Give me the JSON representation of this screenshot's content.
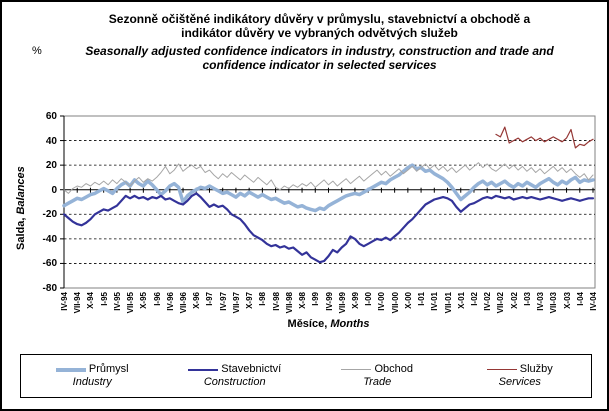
{
  "title": {
    "czech_line1": "Sezonně očištěné indikátory důvěry v průmyslu, stavebnictví a obchodě a",
    "czech_line2": "indikátor důvěry ve vybraných odvětvých služeb",
    "english_line1": "Seasonally adjusted confidence indicators in industry, construction and trade and",
    "english_line2": "confidence indicator in selected services"
  },
  "percent_label": "%",
  "y_axis": {
    "title_czech": "Salda,",
    "title_english": "Balances",
    "max": 60,
    "min": -80,
    "tick_step": 20
  },
  "x_axis": {
    "title_czech": "Měsíce,",
    "title_english": "Months"
  },
  "chart_data": {
    "type": "line",
    "title": "Sezonně očištěné indikátory důvěry v průmyslu, stavebnictví a obchodě a indikátor důvěry ve vybraných odvětvých služeb",
    "subtitle": "Seasonally adjusted confidence indicators in industry, construction and trade and confidence indicator in selected services",
    "xlabel": "Měsíce, Months",
    "ylabel": "Salda, Balances",
    "ylim": [
      -80,
      60
    ],
    "yticks": [
      60,
      40,
      20,
      0,
      -20,
      -40,
      -60,
      -80
    ],
    "grid": "dashed horizontal lines at 40, 20, -20, -40, -60; solid axis at 0",
    "x_unit": "monthly, April 1994 - April 2004, quarterly tick labels",
    "x_tick_labels": [
      "IV-94",
      "VII-94",
      "X-94",
      "I-95",
      "IV-95",
      "VII-95",
      "X-95",
      "I-96",
      "IV-96",
      "VII-96",
      "X-96",
      "I-97",
      "IV-97",
      "VII-97",
      "X-97",
      "I-98",
      "IV-98",
      "VII-98",
      "X-98",
      "I-99",
      "IV-99",
      "VII-99",
      "X-99",
      "I-00",
      "IV-00",
      "VII-00",
      "X-00",
      "I-01",
      "IV-01",
      "VII-01",
      "X-01",
      "I-02",
      "IV-02",
      "VII-02",
      "X-02",
      "I-03",
      "IV-03",
      "VII-03",
      "X-03",
      "I-04",
      "IV-04"
    ],
    "legend_position": "bottom box",
    "series": [
      {
        "id": "industry",
        "name_czech": "Průmysl",
        "name_english": "Industry",
        "color": "#95B3D7",
        "width": 3.5,
        "values": [
          -13,
          -11,
          -9,
          -7,
          -8,
          -6,
          -4,
          -3,
          -1,
          1,
          -1,
          -3,
          1,
          4,
          6,
          3,
          8,
          5,
          3,
          7,
          4,
          0,
          -4,
          -1,
          3,
          5,
          2,
          -10,
          -5,
          -2,
          0,
          2,
          1,
          3,
          1,
          -1,
          -3,
          -2,
          -4,
          -6,
          -3,
          -5,
          -2,
          -4,
          -6,
          -4,
          -6,
          -8,
          -7,
          -9,
          -11,
          -10,
          -12,
          -14,
          -13,
          -15,
          -16,
          -17,
          -15,
          -16,
          -13,
          -11,
          -9,
          -7,
          -5,
          -4,
          -3,
          -4,
          -2,
          0,
          2,
          4,
          6,
          5,
          8,
          10,
          12,
          15,
          18,
          20,
          17,
          18,
          15,
          16,
          13,
          11,
          9,
          6,
          2,
          -3,
          -8,
          -5,
          -2,
          2,
          5,
          7,
          4,
          6,
          3,
          5,
          7,
          4,
          2,
          5,
          3,
          6,
          4,
          2,
          5,
          7,
          9,
          6,
          4,
          7,
          5,
          8,
          10,
          6,
          8,
          7,
          8
        ]
      },
      {
        "id": "construction",
        "name_czech": "Stavebnictví",
        "name_english": "Construction",
        "color": "#333399",
        "width": 2.2,
        "values": [
          -20,
          -23,
          -26,
          -28,
          -29,
          -27,
          -24,
          -20,
          -18,
          -16,
          -17,
          -15,
          -13,
          -9,
          -5,
          -7,
          -5,
          -7,
          -6,
          -8,
          -6,
          -7,
          -5,
          -8,
          -7,
          -9,
          -11,
          -12,
          -9,
          -5,
          -3,
          -6,
          -10,
          -14,
          -12,
          -14,
          -13,
          -16,
          -20,
          -22,
          -24,
          -28,
          -33,
          -37,
          -39,
          -41,
          -44,
          -46,
          -45,
          -47,
          -46,
          -48,
          -47,
          -50,
          -53,
          -51,
          -55,
          -57,
          -59,
          -58,
          -54,
          -49,
          -51,
          -47,
          -44,
          -38,
          -40,
          -44,
          -46,
          -44,
          -42,
          -40,
          -41,
          -39,
          -41,
          -38,
          -35,
          -31,
          -27,
          -24,
          -20,
          -16,
          -12,
          -10,
          -8,
          -7,
          -6,
          -7,
          -9,
          -14,
          -18,
          -15,
          -12,
          -11,
          -9,
          -7,
          -6,
          -7,
          -5,
          -6,
          -7,
          -6,
          -8,
          -7,
          -6,
          -7,
          -6,
          -7,
          -8,
          -7,
          -6,
          -7,
          -8,
          -9,
          -8,
          -7,
          -8,
          -9,
          -8,
          -7,
          -7
        ]
      },
      {
        "id": "trade",
        "name_czech": "Obchod",
        "name_english": "Trade",
        "color": "#A6A6A6",
        "width": 1,
        "values": [
          0,
          -3,
          1,
          3,
          2,
          5,
          3,
          6,
          4,
          7,
          4,
          8,
          5,
          9,
          6,
          3,
          7,
          10,
          6,
          9,
          7,
          10,
          14,
          19,
          13,
          16,
          21,
          15,
          18,
          20,
          17,
          19,
          14,
          16,
          12,
          9,
          13,
          10,
          14,
          11,
          8,
          12,
          9,
          6,
          10,
          7,
          4,
          8,
          2,
          0,
          3,
          1,
          4,
          2,
          5,
          3,
          6,
          2,
          5,
          8,
          4,
          7,
          3,
          6,
          9,
          5,
          8,
          11,
          7,
          10,
          13,
          16,
          12,
          15,
          11,
          14,
          17,
          13,
          16,
          19,
          15,
          18,
          21,
          17,
          20,
          16,
          19,
          15,
          18,
          14,
          17,
          20,
          16,
          19,
          22,
          18,
          21,
          17,
          15,
          18,
          21,
          17,
          20,
          16,
          19,
          15,
          18,
          14,
          17,
          13,
          16,
          19,
          15,
          18,
          14,
          17,
          13,
          10,
          13,
          8,
          12
        ]
      },
      {
        "id": "services",
        "name_czech": "Služby",
        "name_english": "Services",
        "color": "#953735",
        "width": 1.2,
        "values": [
          null,
          null,
          null,
          null,
          null,
          null,
          null,
          null,
          null,
          null,
          null,
          null,
          null,
          null,
          null,
          null,
          null,
          null,
          null,
          null,
          null,
          null,
          null,
          null,
          null,
          null,
          null,
          null,
          null,
          null,
          null,
          null,
          null,
          null,
          null,
          null,
          null,
          null,
          null,
          null,
          null,
          null,
          null,
          null,
          null,
          null,
          null,
          null,
          null,
          null,
          null,
          null,
          null,
          null,
          null,
          null,
          null,
          null,
          null,
          null,
          null,
          null,
          null,
          null,
          null,
          null,
          null,
          null,
          null,
          null,
          null,
          null,
          null,
          null,
          null,
          null,
          null,
          null,
          null,
          null,
          null,
          null,
          null,
          null,
          null,
          null,
          null,
          null,
          null,
          null,
          null,
          null,
          null,
          null,
          null,
          null,
          null,
          null,
          45,
          43,
          51,
          38,
          40,
          42,
          39,
          41,
          43,
          40,
          42,
          39,
          41,
          43,
          41,
          39,
          42,
          49,
          34,
          37,
          36,
          39,
          41
        ]
      }
    ]
  }
}
